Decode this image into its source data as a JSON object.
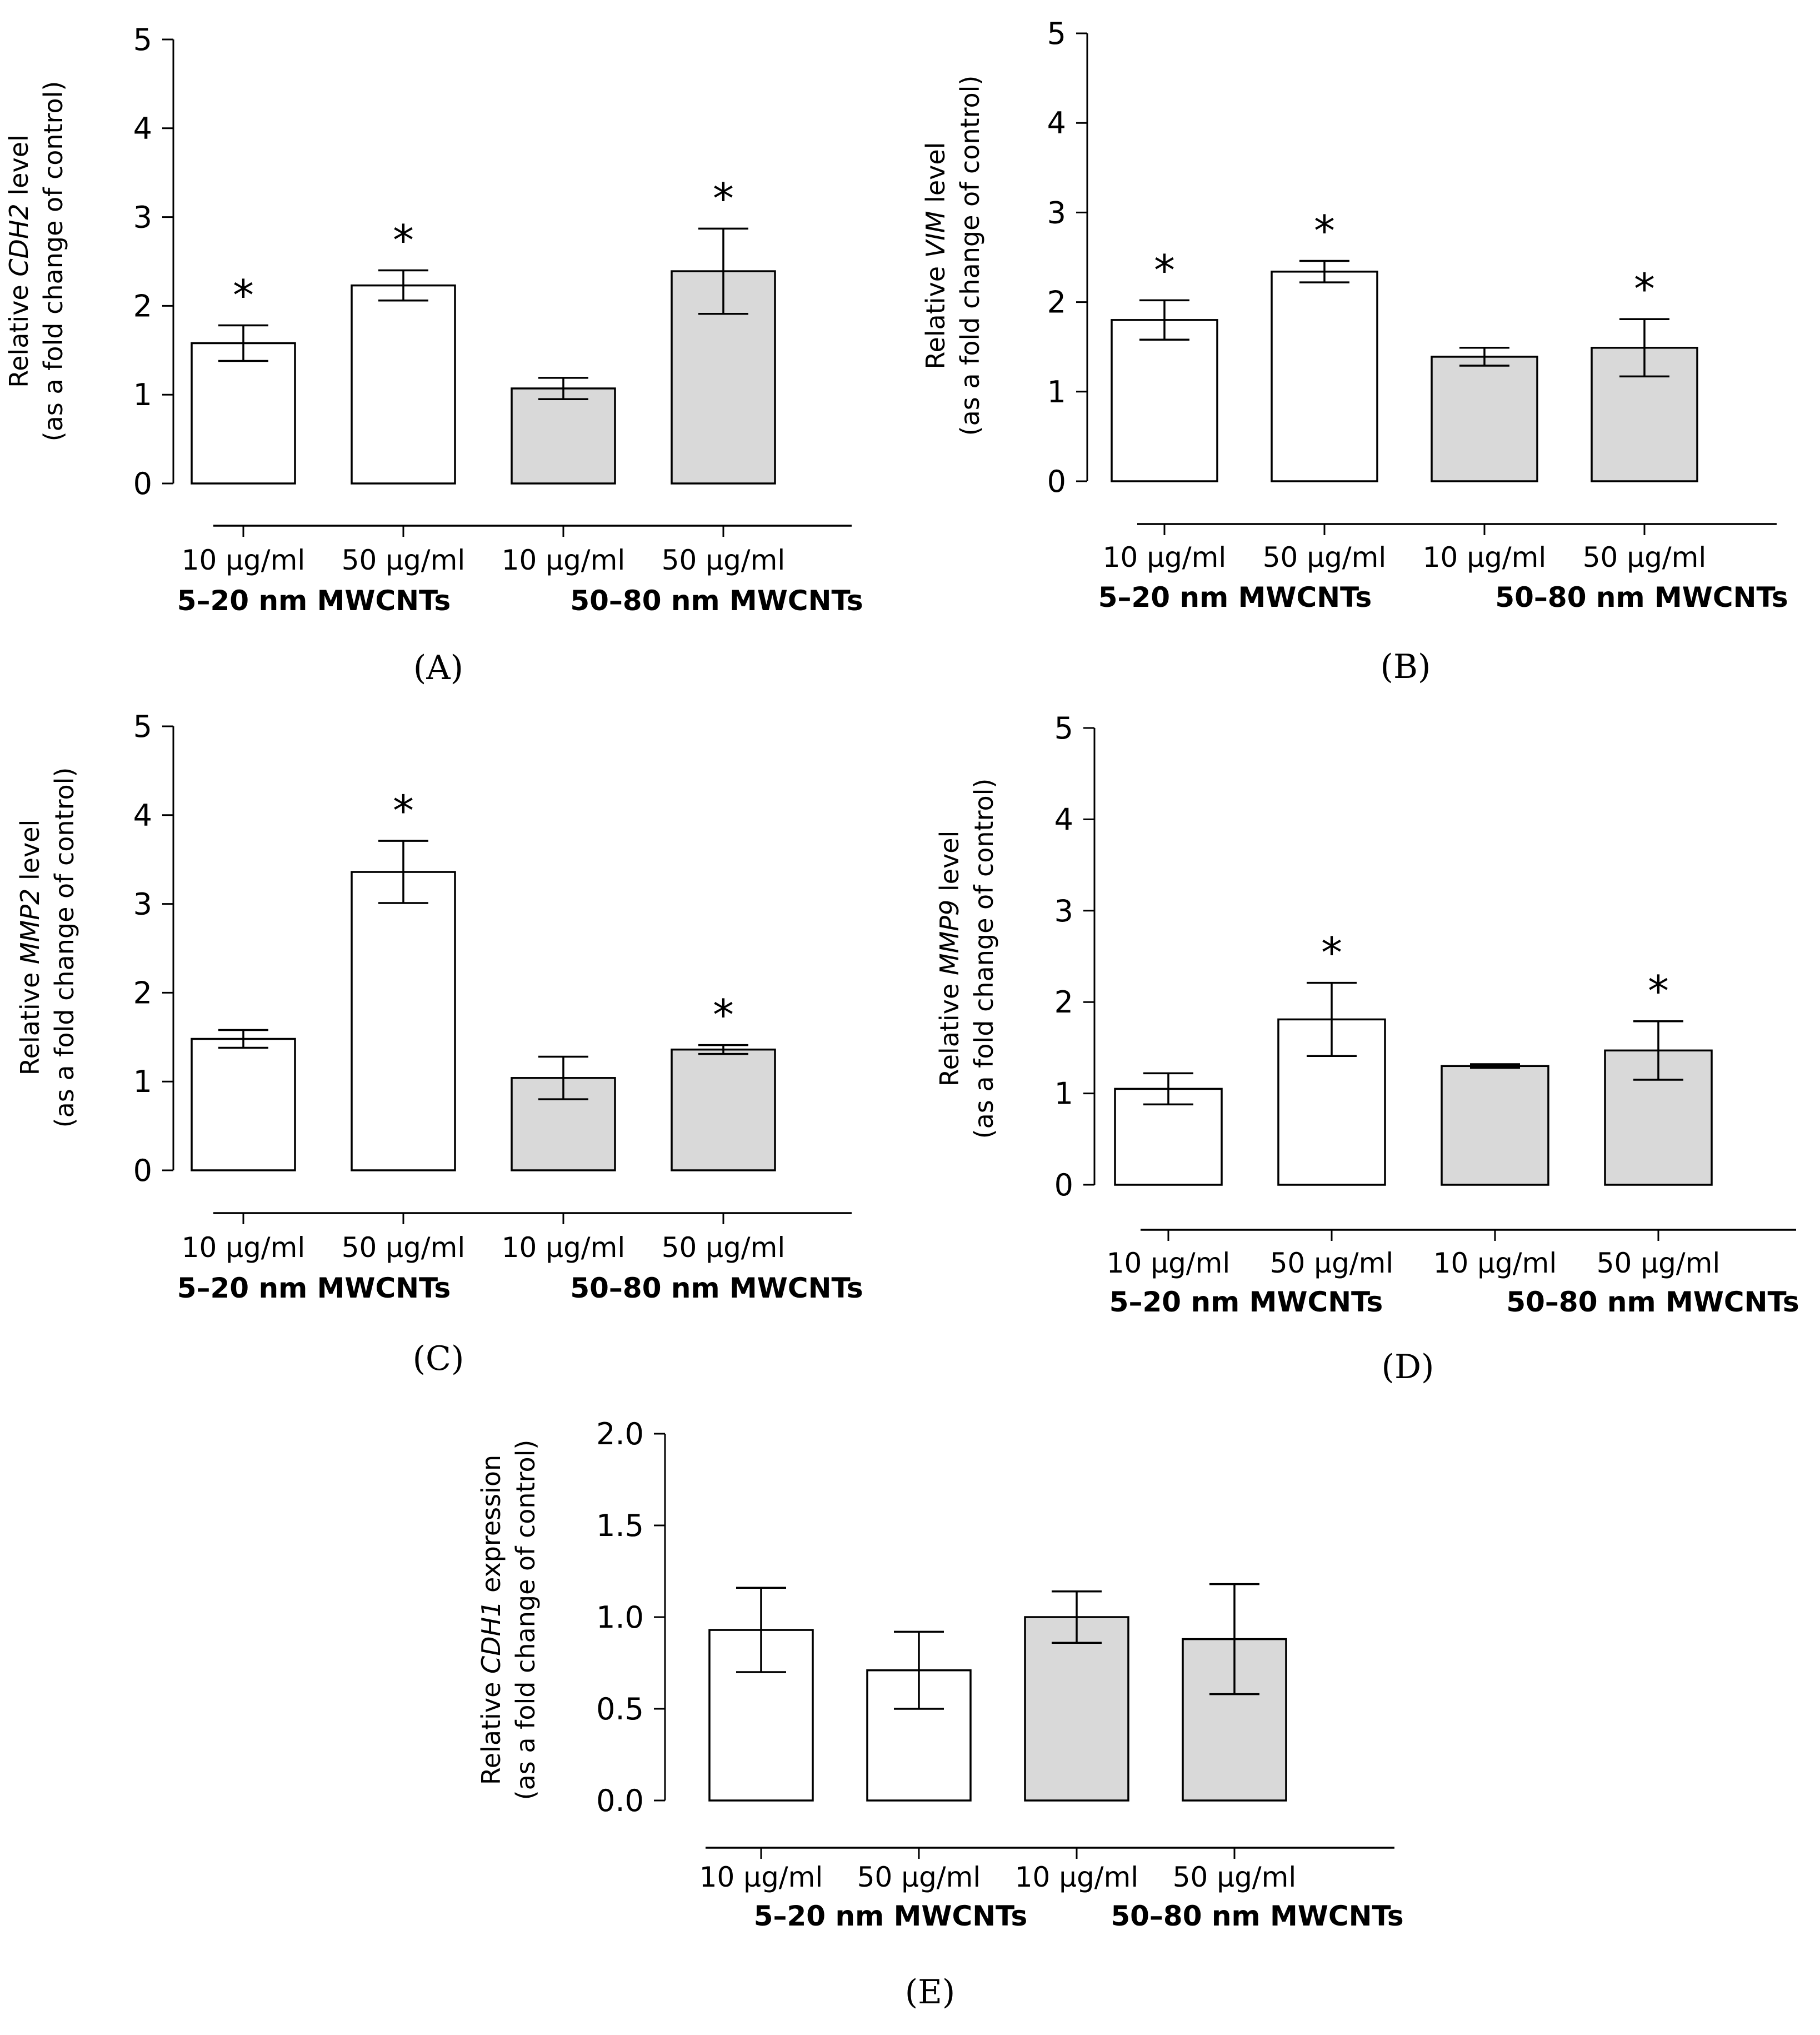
{
  "colors": {
    "white_bar": "#ffffff",
    "grey_bar": "#d9d9d9",
    "ink": "#000000"
  },
  "chart_data": [
    {
      "id": "A",
      "type": "bar",
      "panel_label": "(A)",
      "ylabel_pre": "Relative ",
      "gene": "CDH2",
      "ylabel_post": " level",
      "ylabel_line2": "(as a fold change of control)",
      "ylim": [
        0,
        5
      ],
      "yticks": [
        "0",
        "1",
        "2",
        "3",
        "4",
        "5"
      ],
      "categories": [
        "10 μg/ml",
        "50 μg/ml",
        "10 μg/ml",
        "50 μg/ml"
      ],
      "groups": [
        "5–20 nm MWCNTs",
        "50–80 nm MWCNTs"
      ],
      "values": [
        1.58,
        2.23,
        1.07,
        2.39
      ],
      "errors": [
        0.2,
        0.17,
        0.12,
        0.48
      ],
      "significance": [
        "*",
        "*",
        "",
        "*"
      ]
    },
    {
      "id": "B",
      "type": "bar",
      "panel_label": "(B)",
      "ylabel_pre": "Relative ",
      "gene": "VIM",
      "ylabel_post": " level",
      "ylabel_line2": "(as a fold change of control)",
      "ylim": [
        0,
        5
      ],
      "yticks": [
        "0",
        "1",
        "2",
        "3",
        "4",
        "5"
      ],
      "categories": [
        "10 μg/ml",
        "50 μg/ml",
        "10 μg/ml",
        "50 μg/ml"
      ],
      "groups": [
        "5–20 nm MWCNTs",
        "50–80 nm MWCNTs"
      ],
      "values": [
        1.8,
        2.34,
        1.39,
        1.49
      ],
      "errors": [
        0.22,
        0.12,
        0.1,
        0.32
      ],
      "significance": [
        "*",
        "*",
        "",
        "*"
      ]
    },
    {
      "id": "C",
      "type": "bar",
      "panel_label": "(C)",
      "ylabel_pre": "Relative ",
      "gene": "MMP2",
      "ylabel_post": " level",
      "ylabel_line2": "(as a fold change of control)",
      "ylim": [
        0,
        5
      ],
      "yticks": [
        "0",
        "1",
        "2",
        "3",
        "4",
        "5"
      ],
      "categories": [
        "10 μg/ml",
        "50 μg/ml",
        "10 μg/ml",
        "50 μg/ml"
      ],
      "groups": [
        "5–20 nm MWCNTs",
        "50–80 nm MWCNTs"
      ],
      "values": [
        1.48,
        3.36,
        1.04,
        1.36
      ],
      "errors": [
        0.1,
        0.35,
        0.24,
        0.05
      ],
      "significance": [
        "",
        "*",
        "",
        "*"
      ]
    },
    {
      "id": "D",
      "type": "bar",
      "panel_label": "(D)",
      "ylabel_pre": "Relative ",
      "gene": "MMP9",
      "ylabel_post": " level",
      "ylabel_line2": "(as a fold change of control)",
      "ylim": [
        0,
        5
      ],
      "yticks": [
        "0",
        "1",
        "2",
        "3",
        "4",
        "5"
      ],
      "categories": [
        "10 μg/ml",
        "50 μg/ml",
        "10 μg/ml",
        "50 μg/ml"
      ],
      "groups": [
        "5–20 nm MWCNTs",
        "50–80 nm MWCNTs"
      ],
      "values": [
        1.05,
        1.81,
        1.3,
        1.47
      ],
      "errors": [
        0.17,
        0.4,
        0.02,
        0.32
      ],
      "significance": [
        "",
        "*",
        "",
        "*"
      ]
    },
    {
      "id": "E",
      "type": "bar",
      "panel_label": "(E)",
      "ylabel_pre": "Relative ",
      "gene": "CDH1",
      "ylabel_post": " expression",
      "ylabel_line2": "(as a fold change of control)",
      "ylim": [
        0,
        2
      ],
      "yticks": [
        "0.0",
        "0.5",
        "1.0",
        "1.5",
        "2.0"
      ],
      "categories": [
        "10 μg/ml",
        "50 μg/ml",
        "10 μg/ml",
        "50 μg/ml"
      ],
      "groups": [
        "5–20 nm MWCNTs",
        "50–80 nm MWCNTs"
      ],
      "values": [
        0.93,
        0.71,
        1.0,
        0.88
      ],
      "errors": [
        0.23,
        0.21,
        0.14,
        0.3
      ],
      "significance": [
        "",
        "",
        "",
        ""
      ]
    }
  ]
}
